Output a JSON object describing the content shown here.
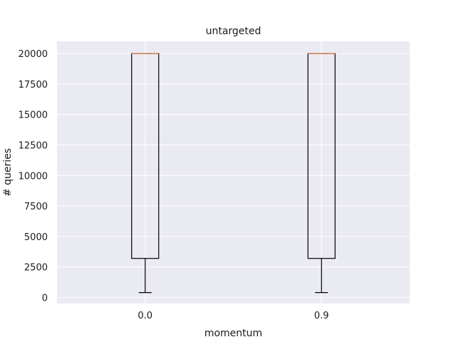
{
  "chart_data": {
    "type": "box",
    "title": "untargeted",
    "xlabel": "momentum",
    "ylabel": "# queries",
    "categories": [
      "0.0",
      "0.9"
    ],
    "yticks": [
      0,
      2500,
      5000,
      7500,
      10000,
      12500,
      15000,
      17500,
      20000
    ],
    "ylim": [
      -500,
      21000
    ],
    "grid": true,
    "boxes": [
      {
        "category": "0.0",
        "whisker_low": 400,
        "q1": 3200,
        "median": 20000,
        "q3": 20000,
        "whisker_high": 20000
      },
      {
        "category": "0.9",
        "whisker_low": 400,
        "q1": 3200,
        "median": 20000,
        "q3": 20000,
        "whisker_high": 20000
      }
    ],
    "colors": {
      "background": "#eaeaf2",
      "grid": "#ffffff",
      "box": "#000000",
      "median": "#dd8452"
    }
  }
}
